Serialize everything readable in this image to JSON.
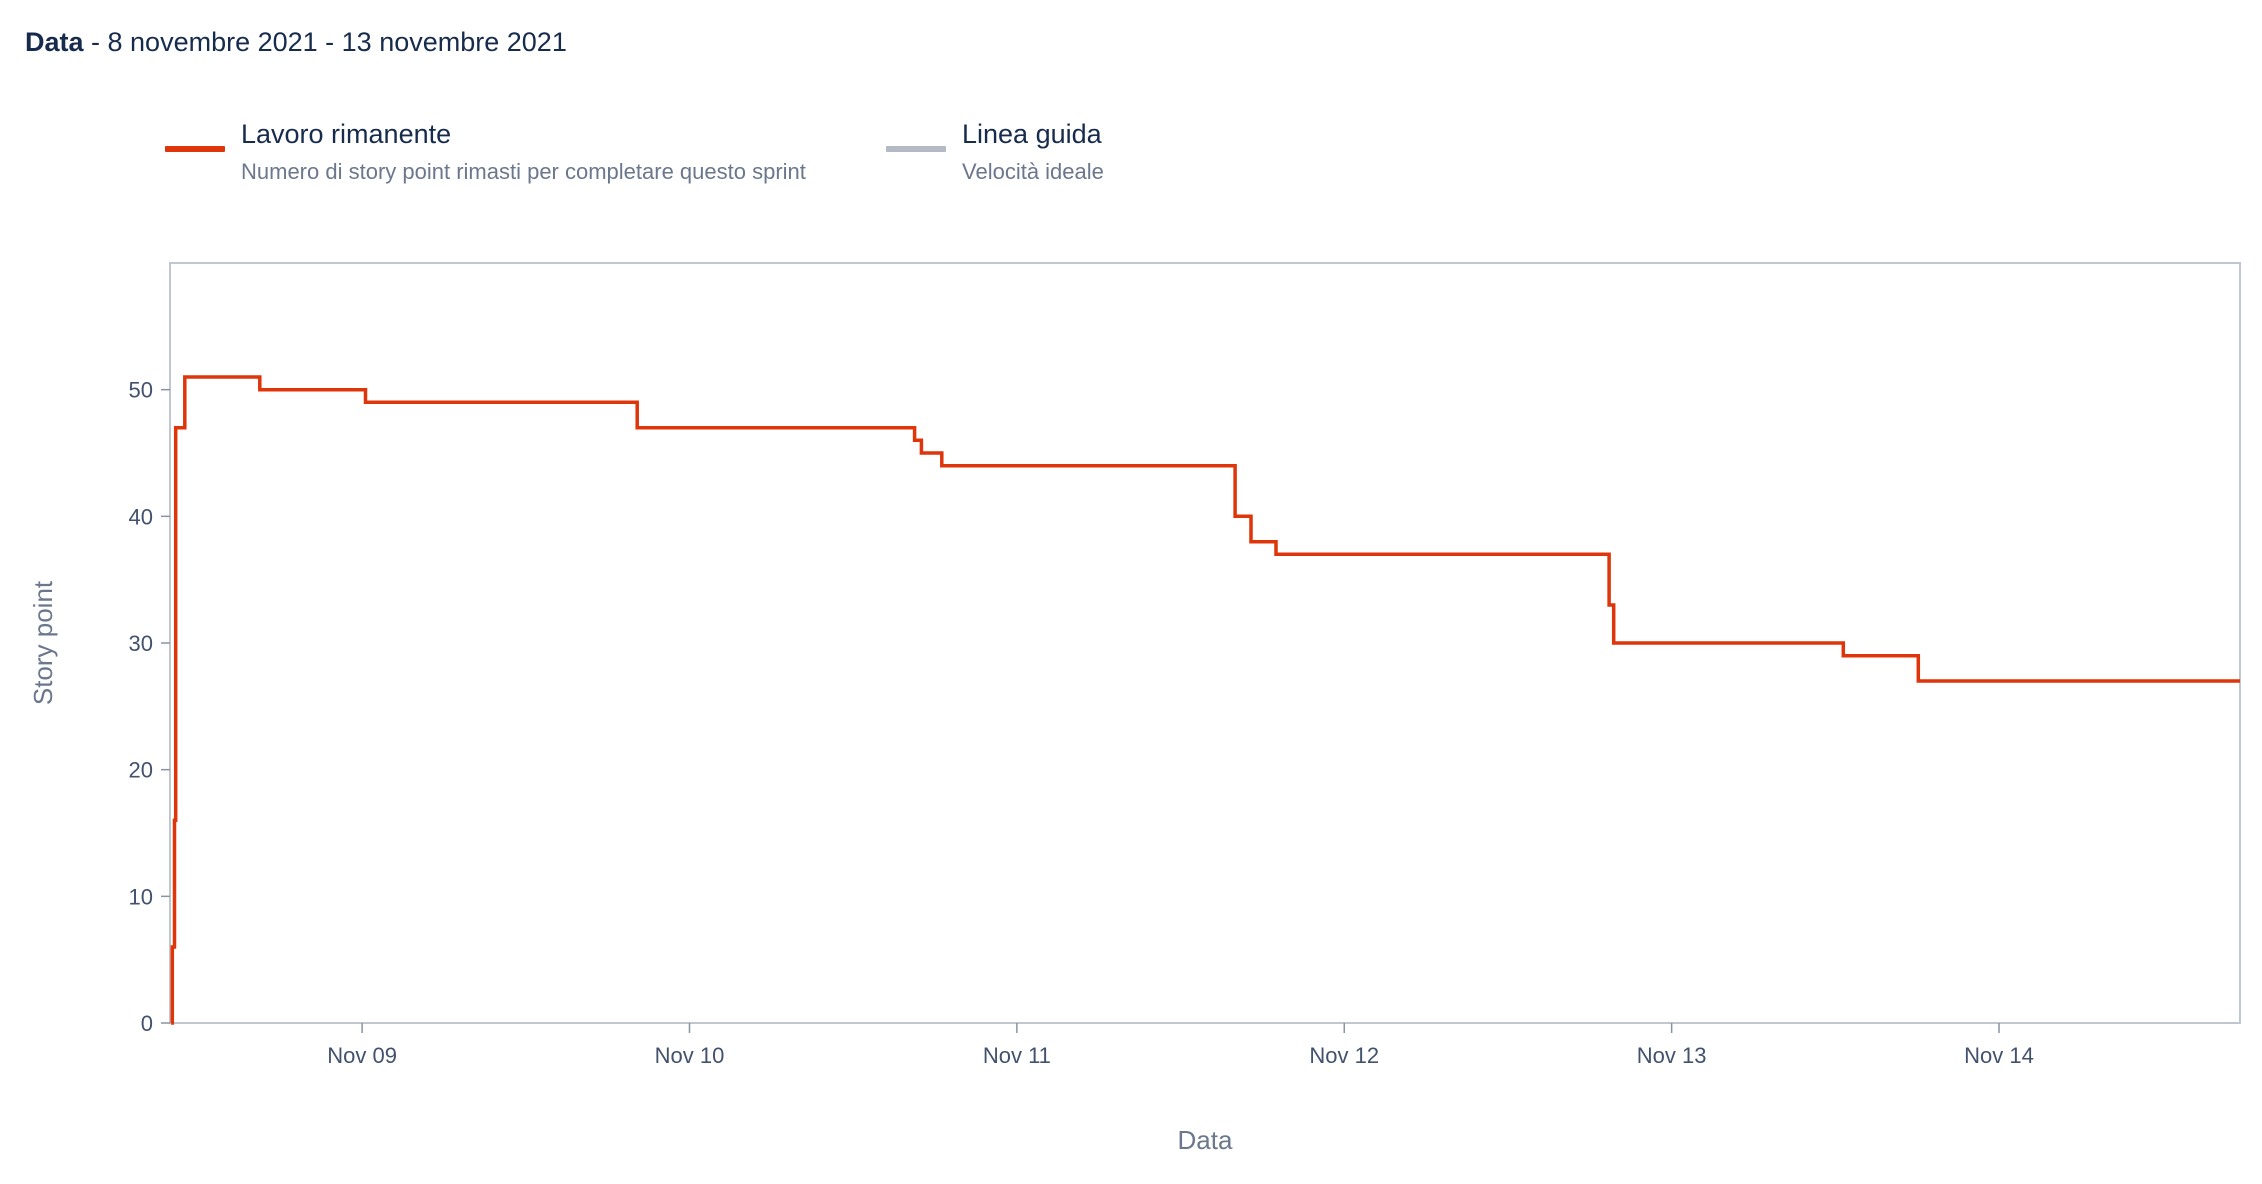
{
  "header": {
    "label": "Data",
    "range": " - 8 novembre 2021 - 13 novembre 2021"
  },
  "legend": [
    {
      "name": "Lavoro rimanente",
      "description": "Numero di story point rimasti per completare questo sprint",
      "color": "#de350b"
    },
    {
      "name": "Linea guida",
      "description": "Velocità ideale",
      "color": "#b3bac5"
    }
  ],
  "chart_data": {
    "type": "line",
    "title": "",
    "xlabel": "Data",
    "ylabel": "Story point",
    "y_ticks": [
      0,
      10,
      20,
      30,
      40,
      50
    ],
    "ylim": [
      0,
      60
    ],
    "x_ticks": [
      "Nov 09",
      "Nov 10",
      "Nov 11",
      "Nov 12",
      "Nov 13",
      "Nov 14"
    ],
    "xlim": [
      "2021-11-08 09:55",
      "2021-11-14 17:40"
    ],
    "grid": false,
    "legend_position": "top-left",
    "series": [
      {
        "name": "Lavoro rimanente",
        "color": "#de350b",
        "step": true,
        "points": [
          [
            "2021-11-08 10:00",
            0
          ],
          [
            "2021-11-08 10:05",
            6
          ],
          [
            "2021-11-08 10:15",
            16
          ],
          [
            "2021-11-08 10:20",
            47
          ],
          [
            "2021-11-08 11:00",
            51
          ],
          [
            "2021-11-08 16:30",
            50
          ],
          [
            "2021-11-09 00:15",
            49
          ],
          [
            "2021-11-09 20:10",
            47
          ],
          [
            "2021-11-10 16:30",
            46
          ],
          [
            "2021-11-10 17:00",
            45
          ],
          [
            "2021-11-10 18:30",
            44
          ],
          [
            "2021-11-11 16:00",
            40
          ],
          [
            "2021-11-11 17:10",
            38
          ],
          [
            "2021-11-11 19:00",
            37
          ],
          [
            "2021-11-12 19:25",
            33
          ],
          [
            "2021-11-12 19:45",
            30
          ],
          [
            "2021-11-13 12:35",
            29
          ],
          [
            "2021-11-13 18:05",
            27
          ],
          [
            "2021-11-14 17:40",
            27
          ]
        ]
      },
      {
        "name": "Linea guida",
        "color": "#b3bac5",
        "points": []
      }
    ]
  }
}
